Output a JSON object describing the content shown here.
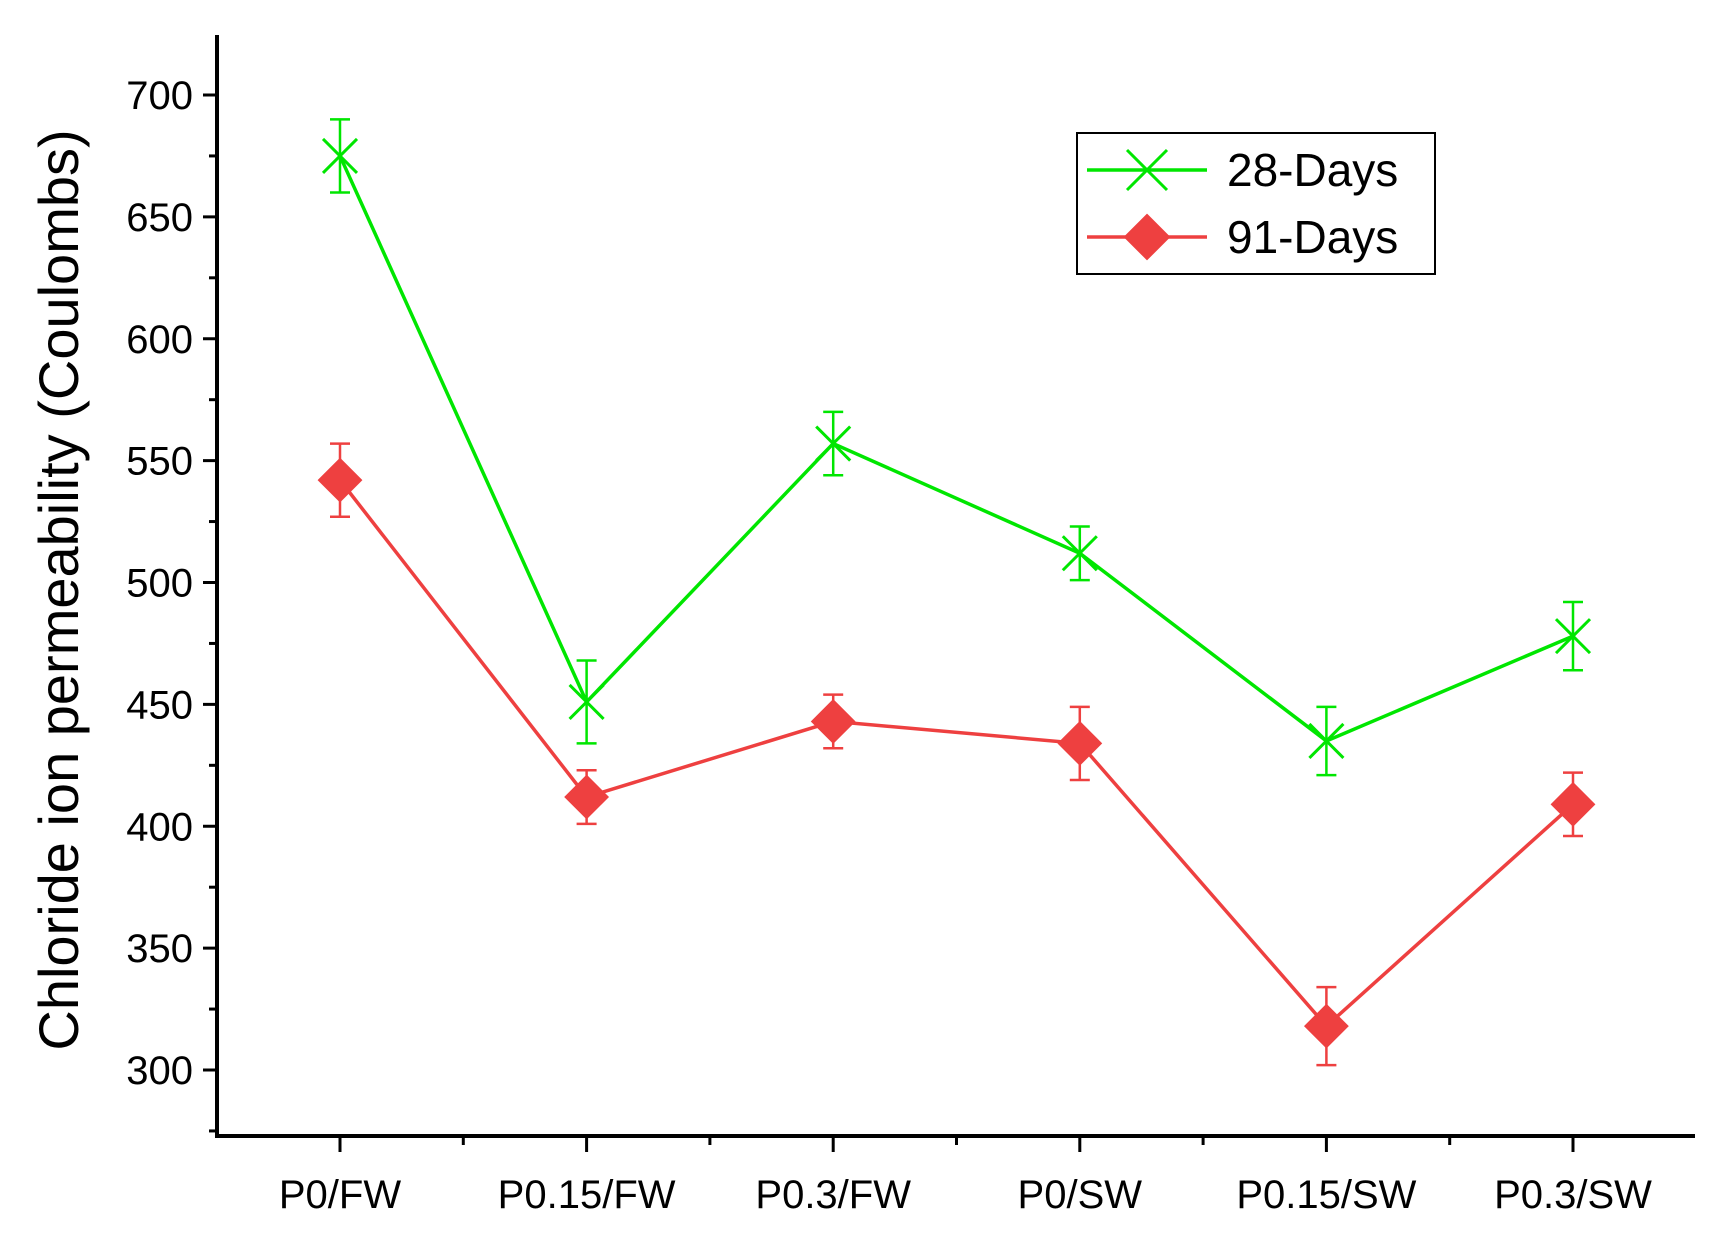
{
  "chart_data": {
    "type": "line",
    "title": "",
    "xlabel": "",
    "ylabel": "Chloride ion permeability (Coulombs)",
    "categories": [
      "P0/FW",
      "P0.15/FW",
      "P0.3/FW",
      "P0/SW",
      "P0.15/SW",
      "P0.3/SW"
    ],
    "ylim": [
      275,
      725
    ],
    "yticks": [
      300,
      350,
      400,
      450,
      500,
      550,
      600,
      650,
      700
    ],
    "grid": false,
    "legend_position": "top-right",
    "series": [
      {
        "name": "28-Days",
        "color": "#00e600",
        "marker": "x",
        "values": [
          675,
          451,
          557,
          512,
          435,
          478
        ],
        "errors": [
          15,
          17,
          13,
          11,
          14,
          14
        ]
      },
      {
        "name": "91-Days",
        "color": "#ee4040",
        "marker": "diamond",
        "values": [
          542,
          412,
          443,
          434,
          318,
          409
        ],
        "errors": [
          15,
          11,
          11,
          15,
          16,
          13
        ]
      }
    ]
  }
}
